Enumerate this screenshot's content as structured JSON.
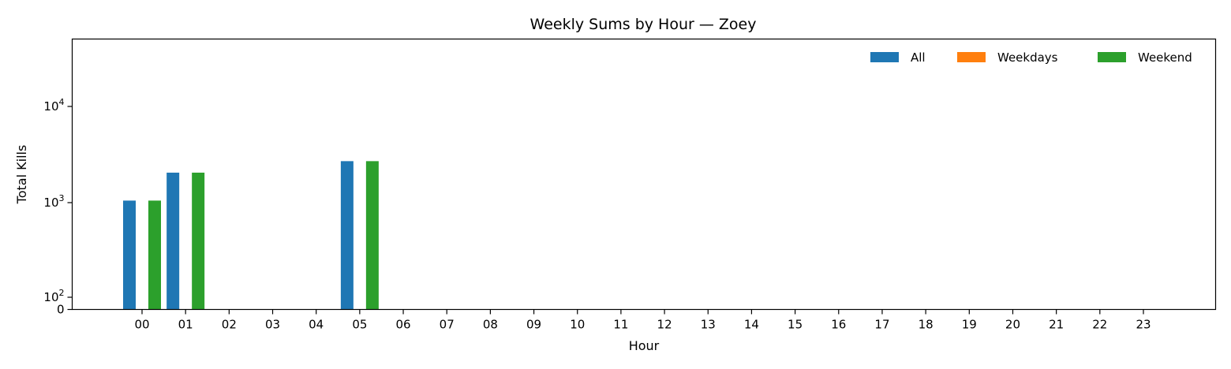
{
  "chart_data": {
    "type": "bar",
    "title": "Weekly Sums by Hour — Zoey",
    "xlabel": "Hour",
    "ylabel": "Total Kills",
    "yscale": "symlog",
    "ylim": [
      0,
      50000
    ],
    "yticks": [
      {
        "value": 0,
        "base": "0",
        "exp": ""
      },
      {
        "value": 100,
        "base": "10",
        "exp": "2"
      },
      {
        "value": 1000,
        "base": "10",
        "exp": "3"
      },
      {
        "value": 10000,
        "base": "10",
        "exp": "4"
      }
    ],
    "categories": [
      "00",
      "01",
      "02",
      "03",
      "04",
      "05",
      "06",
      "07",
      "08",
      "09",
      "10",
      "11",
      "12",
      "13",
      "14",
      "15",
      "16",
      "17",
      "18",
      "19",
      "20",
      "21",
      "22",
      "23"
    ],
    "series": [
      {
        "name": "All",
        "color": "#1f77b4",
        "values": [
          1050,
          2050,
          0,
          0,
          0,
          2700,
          0,
          0,
          0,
          0,
          0,
          0,
          0,
          0,
          0,
          0,
          0,
          0,
          0,
          0,
          0,
          0,
          0,
          2
        ]
      },
      {
        "name": "Weekdays",
        "color": "#ff7f0e",
        "values": [
          0,
          0,
          0,
          0,
          0,
          0,
          0,
          0,
          0,
          0,
          0,
          0,
          0,
          0,
          0,
          0,
          0,
          0,
          0,
          0,
          0,
          0,
          0,
          0
        ]
      },
      {
        "name": "Weekend",
        "color": "#2ca02c",
        "values": [
          1050,
          2050,
          0,
          0,
          0,
          2700,
          0,
          0,
          0,
          0,
          0,
          0,
          0,
          0,
          0,
          0,
          0,
          0,
          0,
          0,
          0,
          0,
          0,
          2
        ]
      }
    ],
    "legend_position": "top-right",
    "grid": false
  }
}
